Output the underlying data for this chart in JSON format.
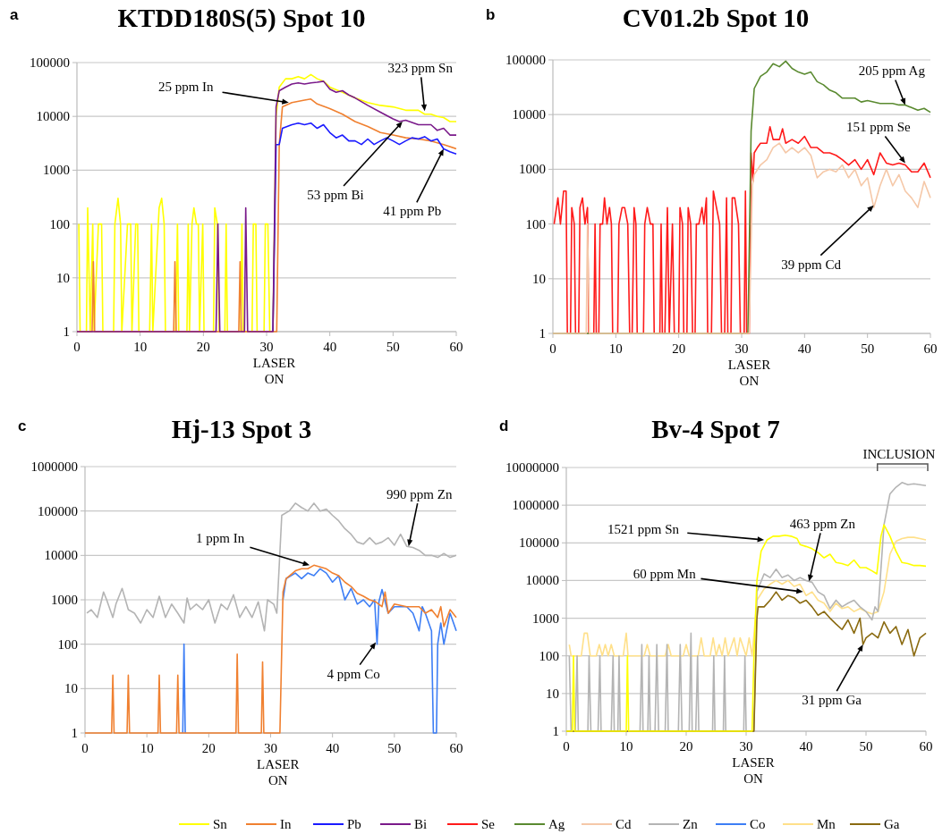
{
  "chart_data": [
    {
      "type": "line",
      "title": "KTDD180S(5) Spot 10",
      "log": "y",
      "grid": "y",
      "legend": "bottom",
      "xlim": [
        0,
        60
      ],
      "xticks": [
        0,
        10,
        20,
        30,
        40,
        50,
        60
      ],
      "ylim": [
        1,
        100000
      ],
      "yticks": [
        1,
        10,
        100,
        1000,
        10000,
        100000
      ],
      "annotations": [
        "a",
        "LASER ON",
        {
          "text": "25 ppm In",
          "x": 33.5,
          "y": 18000
        },
        {
          "text": "323 ppm Sn",
          "x": 55,
          "y": 12500
        },
        {
          "text": "53 ppm Bi",
          "x": 51.5,
          "y": 8000
        },
        {
          "text": "41 ppm Pb",
          "x": 58,
          "y": 2500
        }
      ],
      "series": [
        {
          "name": "Sn",
          "color": "#ffff00",
          "x": [
            0.3,
            0.5,
            1.5,
            1.7,
            2.1,
            2.5,
            2.7,
            3.4,
            3.9,
            4.1,
            5.8,
            6,
            6.5,
            6.9,
            7.1,
            8,
            8.5,
            8.7,
            9.3,
            9.6,
            9.8,
            11.5,
            11.8,
            12,
            13,
            13.4,
            13.8,
            14,
            15.6,
            15.9,
            16.1,
            17.4,
            17.6,
            17.8,
            18.2,
            18.5,
            18.9,
            19.2,
            19.4,
            19.9,
            20.1,
            21.6,
            21.8,
            22.2,
            22.5,
            23.4,
            23.6,
            23.8,
            25.9,
            26.1,
            26.3,
            27.7,
            27.9,
            28.3,
            28.5,
            29.6,
            29.8,
            30.2,
            30.5,
            31,
            31.5,
            32,
            33,
            34,
            35,
            36,
            37,
            38,
            39,
            40,
            42,
            44,
            46,
            48,
            50,
            52,
            54,
            55,
            56,
            57,
            58,
            59,
            60
          ],
          "values": [
            100,
            1,
            1,
            200,
            1,
            100,
            1,
            100,
            100,
            1,
            1,
            100,
            300,
            100,
            1,
            100,
            100,
            1,
            100,
            100,
            1,
            1,
            100,
            1,
            200,
            300,
            100,
            1,
            1,
            100,
            1,
            1,
            100,
            1,
            100,
            200,
            100,
            100,
            1,
            100,
            1,
            1,
            200,
            100,
            1,
            1,
            100,
            1,
            1,
            100,
            1,
            1,
            100,
            100,
            1,
            1,
            100,
            100,
            1,
            1,
            10000,
            35000,
            50000,
            50000,
            55000,
            50000,
            60000,
            50000,
            45000,
            35000,
            28000,
            22000,
            18000,
            16000,
            15000,
            13000,
            13000,
            11000,
            11000,
            10000,
            9500,
            8000,
            8000
          ]
        },
        {
          "name": "In",
          "color": "#f08030",
          "x": [
            0,
            2.4,
            2.6,
            2.8,
            15.3,
            15.5,
            15.7,
            25.6,
            25.8,
            26,
            31.6,
            32,
            32.5,
            34,
            36,
            37,
            38,
            40,
            42,
            44,
            46,
            48,
            50,
            52,
            54,
            56,
            58,
            60
          ],
          "values": [
            1,
            1,
            20,
            1,
            1,
            20,
            1,
            1,
            20,
            1,
            1,
            3000,
            15000,
            18000,
            20000,
            21000,
            17000,
            14000,
            11000,
            8000,
            6500,
            5000,
            4500,
            4000,
            3800,
            3500,
            3000,
            2500
          ]
        },
        {
          "name": "Pb",
          "color": "#1a1aff",
          "x": [
            31,
            31.5,
            32,
            32.5,
            34,
            35,
            36,
            37,
            38,
            39,
            40,
            41,
            42,
            43,
            44,
            45,
            46,
            47,
            48,
            49,
            50,
            51,
            52,
            53,
            54,
            55,
            56,
            57,
            58,
            59,
            60
          ],
          "values": [
            1,
            3000,
            3000,
            6000,
            7000,
            7500,
            7000,
            7500,
            6000,
            7000,
            5000,
            4000,
            4500,
            3500,
            3500,
            3000,
            3800,
            3000,
            3500,
            4000,
            3500,
            3000,
            3500,
            4000,
            3800,
            4200,
            3500,
            3800,
            2500,
            2200,
            2000
          ]
        },
        {
          "name": "Bi",
          "color": "#7a1a8a",
          "x": [
            0,
            22,
            22.3,
            22.6,
            26.5,
            26.7,
            27,
            31,
            31.5,
            32,
            33,
            34,
            35,
            36,
            37,
            38,
            39,
            40,
            41,
            42,
            43,
            44,
            46,
            48,
            50,
            51,
            52,
            54,
            56,
            57,
            58,
            59,
            60
          ],
          "values": [
            1,
            1,
            100,
            1,
            1,
            200,
            1,
            1,
            15000,
            30000,
            35000,
            40000,
            42000,
            40000,
            42000,
            43000,
            45000,
            32000,
            28000,
            30000,
            25000,
            22000,
            16000,
            12000,
            9000,
            8000,
            8500,
            7000,
            7000,
            5500,
            6000,
            4500,
            4500
          ]
        }
      ]
    },
    {
      "type": "line",
      "title": "CV01.2b Spot 10",
      "log": "y",
      "grid": "y",
      "legend": "bottom",
      "xlim": [
        0,
        60
      ],
      "xticks": [
        0,
        10,
        20,
        30,
        40,
        50,
        60
      ],
      "ylim": [
        1,
        100000
      ],
      "yticks": [
        1,
        10,
        100,
        1000,
        10000,
        100000
      ],
      "annotations": [
        "b",
        "LASER ON",
        {
          "text": "205 ppm Ag",
          "x": 56,
          "y": 15000
        },
        {
          "text": "151 ppm Se",
          "x": 56,
          "y": 1300
        },
        {
          "text": "39 ppm Cd",
          "x": 51,
          "y": 220
        }
      ],
      "series": [
        {
          "name": "Se",
          "color": "#ff1a1a",
          "x": [
            0.2,
            0.8,
            1.2,
            1.7,
            2.1,
            2.3,
            2.8,
            3,
            3.4,
            3.6,
            4.1,
            4.3,
            4.7,
            5.1,
            5.5,
            5.7,
            6.5,
            6.7,
            6.9,
            7.3,
            7.5,
            7.9,
            8.2,
            8.6,
            9,
            9.3,
            9.5,
            10.3,
            10.5,
            11,
            11.4,
            11.9,
            12.2,
            12.6,
            12.9,
            13.2,
            13.4,
            14.4,
            14.6,
            15,
            15.5,
            15.9,
            16.1,
            17,
            17.2,
            17.4,
            17.8,
            18.2,
            18.5,
            19,
            19.3,
            20,
            20.2,
            20.6,
            20.8,
            21.3,
            21.5,
            21.9,
            22.2,
            22.6,
            22.8,
            23.2,
            23.7,
            24,
            24.4,
            24.6,
            25.2,
            25.5,
            26.5,
            26.8,
            27.3,
            27.6,
            27.8,
            28.3,
            28.5,
            28.9,
            29.5,
            29.8,
            30.4,
            30.6,
            30.8,
            31.2,
            31.5,
            31.8,
            32,
            32.5,
            33,
            34,
            34.5,
            35,
            36,
            36.5,
            37,
            38,
            39,
            40,
            41,
            42,
            43,
            44,
            45,
            46,
            47,
            48,
            49,
            50,
            51,
            52,
            53,
            54,
            55,
            56,
            57,
            58,
            59,
            60
          ],
          "values": [
            100,
            300,
            100,
            400,
            400,
            1,
            1,
            200,
            100,
            1,
            1,
            200,
            300,
            100,
            200,
            1,
            1,
            100,
            1,
            1,
            100,
            100,
            300,
            100,
            200,
            100,
            1,
            1,
            100,
            200,
            200,
            100,
            1,
            1,
            200,
            100,
            1,
            1,
            100,
            200,
            100,
            100,
            1,
            1,
            100,
            1,
            1,
            200,
            1,
            100,
            1,
            1,
            200,
            100,
            1,
            1,
            200,
            100,
            1,
            1,
            100,
            100,
            200,
            100,
            300,
            1,
            1,
            400,
            100,
            1,
            1,
            300,
            1,
            1,
            300,
            300,
            100,
            1,
            1,
            400,
            1,
            1,
            2000,
            600,
            2000,
            2500,
            3000,
            3000,
            6000,
            3500,
            3500,
            5500,
            3000,
            3500,
            3000,
            4000,
            2500,
            2500,
            2000,
            2000,
            1800,
            1500,
            1200,
            1500,
            1000,
            1500,
            800,
            2000,
            1300,
            1200,
            1300,
            1200,
            900,
            900,
            1300,
            700
          ]
        },
        {
          "name": "Ag",
          "color": "#5a8a30",
          "x": [
            0,
            31,
            31.5,
            32,
            33,
            34,
            35,
            36,
            37,
            38,
            39,
            40,
            41,
            42,
            43,
            44,
            45,
            46,
            48,
            49,
            50,
            52,
            54,
            55,
            56,
            58,
            59,
            60
          ],
          "values": [
            1,
            1,
            5000,
            30000,
            50000,
            60000,
            85000,
            75000,
            95000,
            70000,
            60000,
            55000,
            60000,
            40000,
            35000,
            28000,
            25000,
            20000,
            20000,
            17000,
            18000,
            16000,
            16000,
            15000,
            15000,
            12000,
            13000,
            11000
          ]
        },
        {
          "name": "Cd",
          "color": "#f5c8a8",
          "x": [
            0,
            5.3,
            5.5,
            5.8,
            31.2,
            31.7,
            32,
            33,
            34,
            35,
            36,
            37,
            38,
            39,
            40,
            41,
            42,
            43,
            44,
            45,
            46,
            47,
            48,
            49,
            50,
            51,
            52,
            53,
            54,
            55,
            56,
            57,
            58,
            59,
            60
          ],
          "values": [
            1,
            1,
            100,
            1,
            1,
            500,
            800,
            1200,
            1500,
            2500,
            3000,
            2000,
            2500,
            2000,
            2500,
            1800,
            700,
            900,
            1000,
            900,
            1200,
            700,
            1000,
            500,
            700,
            200,
            500,
            1000,
            500,
            800,
            400,
            300,
            200,
            600,
            300
          ]
        }
      ]
    },
    {
      "type": "line",
      "title": "Hj-13 Spot 3",
      "log": "y",
      "grid": "y",
      "legend": "bottom",
      "xlim": [
        0,
        60
      ],
      "xticks": [
        0,
        10,
        20,
        30,
        40,
        50,
        60
      ],
      "ylim": [
        1,
        1000000
      ],
      "yticks": [
        1,
        10,
        100,
        1000,
        10000,
        100000,
        1000000
      ],
      "annotations": [
        "c",
        "LASER ON",
        {
          "text": "990 ppm Zn",
          "x": 52.3,
          "y": 16000
        },
        {
          "text": "1 ppm In",
          "x": 36.3,
          "y": 6000
        },
        {
          "text": "4 ppm Co",
          "x": 47,
          "y": 110
        }
      ],
      "series": [
        {
          "name": "Zn",
          "color": "#b4b4b4",
          "x": [
            0.3,
            1,
            2,
            3,
            3.5,
            4.5,
            5,
            6,
            7,
            8,
            9,
            10,
            11,
            12,
            13,
            14,
            15,
            16,
            16.5,
            17,
            18,
            19,
            20,
            21,
            22,
            23,
            24,
            25,
            26,
            27,
            28,
            29,
            29.5,
            30.5,
            31,
            31.8,
            33,
            34,
            35,
            36,
            37,
            38,
            39,
            40,
            41,
            42,
            43,
            44,
            45,
            46,
            47,
            48,
            49,
            50,
            51,
            52,
            53,
            54,
            55,
            56,
            57,
            58,
            59,
            60
          ],
          "values": [
            500,
            600,
            400,
            1500,
            1000,
            400,
            800,
            1800,
            600,
            500,
            300,
            600,
            400,
            1200,
            400,
            800,
            500,
            300,
            1100,
            600,
            800,
            600,
            1000,
            300,
            800,
            600,
            1300,
            400,
            700,
            400,
            900,
            200,
            1000,
            800,
            500,
            80000,
            100000,
            150000,
            120000,
            100000,
            150000,
            100000,
            110000,
            80000,
            60000,
            40000,
            30000,
            20000,
            18000,
            25000,
            18000,
            20000,
            25000,
            17000,
            30000,
            16000,
            15000,
            13000,
            10000,
            10000,
            9000,
            11000,
            9000,
            10000
          ]
        },
        {
          "name": "Co",
          "color": "#3d7ef5",
          "x": [
            15.8,
            16,
            16.2,
            31.5,
            32,
            32.5,
            34,
            35,
            36,
            37,
            38,
            39,
            40,
            41,
            42,
            43,
            44,
            45,
            46,
            46.8,
            47.2,
            47.5,
            48,
            49,
            50,
            52,
            53,
            54,
            54.5,
            55,
            56,
            56.3,
            56.8,
            57,
            57.5,
            58,
            59,
            60
          ],
          "values": [
            1,
            100,
            1,
            null,
            1000,
            3000,
            4000,
            3000,
            4000,
            3500,
            5000,
            4000,
            2500,
            3500,
            1000,
            1800,
            800,
            1000,
            700,
            1000,
            100,
            900,
            1700,
            500,
            700,
            700,
            500,
            200,
            700,
            500,
            200,
            1,
            1,
            100,
            300,
            100,
            500,
            200
          ]
        },
        {
          "name": "In",
          "color": "#f08030",
          "x": [
            0,
            4.3,
            4.5,
            4.7,
            6.8,
            7,
            7.2,
            11.8,
            12,
            12.2,
            14.8,
            15,
            15.2,
            24.4,
            24.6,
            24.8,
            28.5,
            28.7,
            28.9,
            31.5,
            32,
            32.5,
            34,
            35,
            36,
            37,
            38,
            39,
            40,
            41,
            42,
            43,
            44,
            45,
            46,
            47,
            48,
            48.5,
            49,
            50,
            52,
            54,
            55,
            56,
            57,
            57.5,
            58,
            59,
            60
          ],
          "values": [
            1,
            1,
            20,
            1,
            1,
            20,
            1,
            1,
            20,
            1,
            1,
            20,
            1,
            1,
            60,
            1,
            1,
            40,
            1,
            1,
            1500,
            3000,
            4500,
            5000,
            5000,
            6000,
            5500,
            5000,
            4000,
            3500,
            2500,
            2000,
            1400,
            1200,
            1000,
            900,
            700,
            1500,
            500,
            800,
            700,
            700,
            500,
            600,
            400,
            700,
            250,
            600,
            400
          ]
        }
      ]
    },
    {
      "type": "line",
      "title": "Bv-4 Spot 7",
      "log": "y",
      "grid": "y",
      "legend": "bottom",
      "xlim": [
        0,
        60
      ],
      "xticks": [
        0,
        10,
        20,
        30,
        40,
        50,
        60
      ],
      "ylim": [
        1,
        10000000
      ],
      "yticks": [
        1,
        10,
        100,
        1000,
        10000,
        100000,
        1000000,
        10000000
      ],
      "annotations": [
        "d",
        "LASER ON",
        "INCLUSION",
        {
          "text": "1521 ppm Sn",
          "x": 33,
          "y": 120000
        },
        {
          "text": "463 ppm Zn",
          "x": 40.5,
          "y": 9500
        },
        {
          "text": "60 ppm Mn",
          "x": 39.5,
          "y": 5000
        },
        {
          "text": "31 ppm Ga",
          "x": 49.5,
          "y": 200
        }
      ],
      "series": [
        {
          "name": "Mn",
          "color": "#ffe08a",
          "x": [
            0.5,
            0.8,
            2.5,
            3,
            3.5,
            4,
            5,
            5.5,
            6,
            6.5,
            7,
            7.5,
            8,
            9.5,
            10,
            10.3,
            13,
            13.5,
            14,
            16.5,
            17,
            17.5,
            19.5,
            20,
            20.5,
            22,
            22.5,
            23,
            24,
            24.5,
            25,
            25.5,
            26,
            26.5,
            27,
            28,
            28.5,
            29,
            30,
            30.5,
            31,
            31.8,
            33,
            34,
            35,
            36,
            37,
            38,
            39,
            40,
            41,
            42,
            43,
            44,
            45,
            46,
            47,
            48,
            49,
            50,
            51,
            52,
            53,
            54,
            55,
            56,
            57,
            58,
            59,
            60
          ],
          "values": [
            200,
            100,
            100,
            400,
            400,
            100,
            100,
            200,
            100,
            200,
            100,
            200,
            100,
            100,
            400,
            100,
            100,
            200,
            100,
            100,
            200,
            100,
            100,
            200,
            100,
            100,
            300,
            100,
            100,
            300,
            100,
            200,
            100,
            300,
            100,
            300,
            100,
            300,
            100,
            300,
            100,
            3000,
            6000,
            8000,
            10000,
            8000,
            10000,
            7000,
            8000,
            4000,
            5000,
            3000,
            2500,
            1500,
            2500,
            1800,
            2000,
            1500,
            1800,
            1500,
            1300,
            1500,
            5000,
            50000,
            110000,
            130000,
            140000,
            140000,
            130000,
            120000
          ]
        },
        {
          "name": "Zn",
          "color": "#b4b4b4",
          "x": [
            0.5,
            0.8,
            1.5,
            1.8,
            2,
            3.6,
            3.8,
            4.1,
            5.3,
            5.6,
            5.8,
            7.5,
            7.8,
            8,
            8.6,
            8.8,
            9,
            12.3,
            12.6,
            12.8,
            13.6,
            13.8,
            14,
            14.8,
            15.1,
            15.4,
            16.5,
            16.8,
            17,
            18.7,
            19,
            19.3,
            20.5,
            20.8,
            21,
            21.6,
            21.9,
            22.1,
            24.4,
            24.6,
            24.8,
            26.2,
            26.4,
            26.6,
            29.6,
            29.8,
            30,
            31.3,
            31.8,
            33,
            34,
            35,
            36,
            37,
            38,
            39,
            40,
            41,
            42,
            43,
            44,
            45,
            46,
            47,
            48,
            49,
            50,
            51,
            51.5,
            52,
            53,
            54,
            55,
            56,
            57,
            58,
            59,
            60
          ],
          "values": [
            100,
            1,
            1,
            100,
            1,
            1,
            100,
            1,
            1,
            100,
            1,
            1,
            100,
            1,
            1,
            100,
            1,
            1,
            200,
            1,
            1,
            100,
            1,
            1,
            200,
            1,
            1,
            200,
            1,
            1,
            200,
            1,
            1,
            400,
            1,
            1,
            100,
            1,
            1,
            100,
            1,
            1,
            100,
            1,
            1,
            100,
            1,
            1,
            5000,
            15000,
            12000,
            20000,
            12000,
            14000,
            10000,
            12000,
            10000,
            9000,
            5000,
            4000,
            1800,
            3000,
            2000,
            2500,
            3000,
            2000,
            1500,
            900,
            2000,
            1500,
            300000,
            2000000,
            3000000,
            4000000,
            3500000,
            3700000,
            3500000,
            3300000
          ]
        },
        {
          "name": "Ga",
          "color": "#8a6a10",
          "x": [
            0,
            31.3,
            31.8,
            32,
            33,
            34,
            35,
            36,
            37,
            38,
            39,
            40,
            41,
            42,
            43,
            44,
            45,
            46,
            47,
            48,
            49,
            49.5,
            50,
            51,
            52,
            53,
            54,
            55,
            56,
            57,
            58,
            59,
            60
          ],
          "values": [
            1,
            1,
            1000,
            2000,
            2000,
            3000,
            5000,
            3000,
            4000,
            3500,
            2500,
            3000,
            2000,
            1200,
            1500,
            1000,
            700,
            500,
            900,
            400,
            1000,
            200,
            300,
            400,
            300,
            800,
            400,
            600,
            200,
            500,
            100,
            300,
            400
          ]
        },
        {
          "name": "Sn",
          "color": "#ffff00",
          "x": [
            0,
            1,
            1.2,
            1.4,
            10,
            10.2,
            10.4,
            31,
            31.3,
            31.8,
            32.5,
            33.5,
            34.5,
            35.5,
            36.5,
            37.5,
            38.5,
            39,
            40,
            41,
            42,
            43,
            44,
            45,
            46,
            47,
            48,
            49,
            50,
            51,
            51.8,
            52.5,
            53,
            54,
            55,
            56,
            57,
            58,
            59,
            60
          ],
          "values": [
            1,
            1,
            100,
            1,
            1,
            100,
            1,
            1,
            100,
            10000,
            60000,
            120000,
            150000,
            150000,
            160000,
            150000,
            130000,
            90000,
            80000,
            70000,
            55000,
            40000,
            50000,
            30000,
            28000,
            25000,
            35000,
            22000,
            22000,
            18000,
            15000,
            150000,
            300000,
            150000,
            60000,
            30000,
            28000,
            25000,
            25000,
            24000
          ]
        }
      ]
    }
  ]
}
